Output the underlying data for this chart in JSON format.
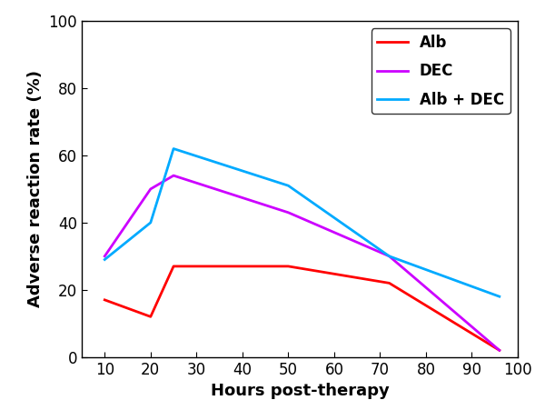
{
  "alb_x": [
    10,
    20,
    25,
    50,
    72,
    96
  ],
  "alb_y": [
    17,
    12,
    27,
    27,
    22,
    2
  ],
  "dec_x": [
    10,
    20,
    25,
    50,
    72,
    96
  ],
  "dec_y": [
    30,
    50,
    54,
    43,
    30,
    2
  ],
  "alb_dec_x": [
    10,
    20,
    25,
    50,
    72,
    96
  ],
  "alb_dec_y": [
    29,
    40,
    62,
    51,
    30,
    18
  ],
  "alb_color": "#ff0000",
  "dec_color": "#cc00ff",
  "alb_dec_color": "#00aaff",
  "alb_label": "Alb",
  "dec_label": "DEC",
  "alb_dec_label": "Alb + DEC",
  "xlabel": "Hours post-therapy",
  "ylabel": "Adverse reaction rate (%)",
  "xlim": [
    5,
    100
  ],
  "ylim": [
    0,
    100
  ],
  "xticks": [
    10,
    20,
    30,
    40,
    50,
    60,
    70,
    80,
    90,
    100
  ],
  "yticks": [
    0,
    20,
    40,
    60,
    80,
    100
  ],
  "linewidth": 2.0,
  "legend_fontsize": 12,
  "axis_label_fontsize": 13,
  "tick_fontsize": 12
}
